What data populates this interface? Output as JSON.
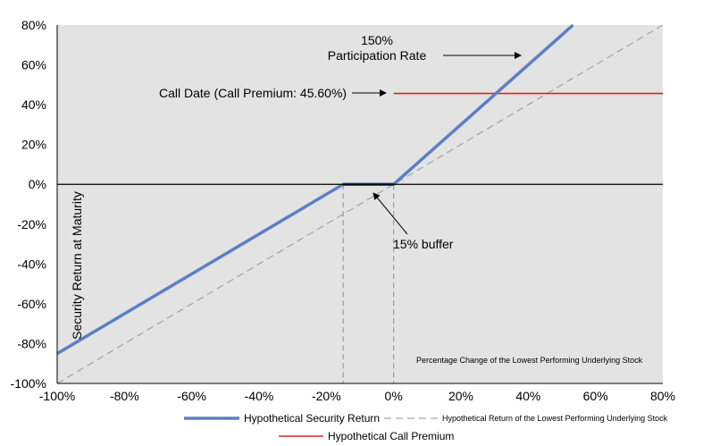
{
  "chart_data": {
    "type": "line",
    "xlabel": "Percentage Change of the Lowest Performing Underlying Stock",
    "ylabel": "Security Return at Maturity",
    "xlim": [
      -100,
      80
    ],
    "ylim": [
      -100,
      80
    ],
    "x_ticks": [
      "-100%",
      "-80%",
      "-60%",
      "-40%",
      "-20%",
      "0%",
      "20%",
      "40%",
      "60%",
      "80%"
    ],
    "y_ticks": [
      "80%",
      "60%",
      "40%",
      "20%",
      "0%",
      "-20%",
      "-40%",
      "-60%",
      "-80%",
      "-100%"
    ],
    "grid": false,
    "series": [
      {
        "name": "Hypothetical Security Return",
        "color": "#5B7FC6",
        "x": [
          -100,
          -15,
          0,
          53.33
        ],
        "y": [
          -85,
          0,
          0,
          80
        ]
      },
      {
        "name": "Hypothetical Return of the Lowest  Performing Underlying Stock",
        "color": "#a6a6a6",
        "x": [
          -100,
          80
        ],
        "y": [
          -100,
          80
        ]
      },
      {
        "name": "Hypothetical Call Premium",
        "color": "#e02020",
        "x": [
          0,
          80
        ],
        "y": [
          45.6,
          45.6
        ]
      }
    ],
    "annotations": {
      "participation_line1": "150%",
      "participation_line2": "Participation Rate",
      "call_date": "Call Date (Call Premium: 45.60%)",
      "buffer": "15% buffer"
    },
    "legend_position": "bottom",
    "colors": {
      "plot_bg": "#e3e3e3",
      "security": "#5B7FC6",
      "underlying": "#a6a6a6",
      "call": "#e02020"
    }
  }
}
